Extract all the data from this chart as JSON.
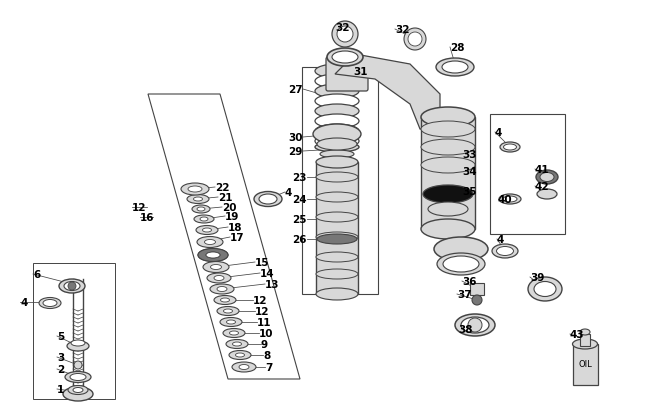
{
  "bg_color": "#ffffff",
  "lc": "#444444",
  "fc_light": "#d8d8d8",
  "fc_white": "#ffffff",
  "fc_dark": "#777777",
  "fc_black": "#111111",
  "figsize": [
    6.5,
    4.06
  ],
  "dpi": 100
}
